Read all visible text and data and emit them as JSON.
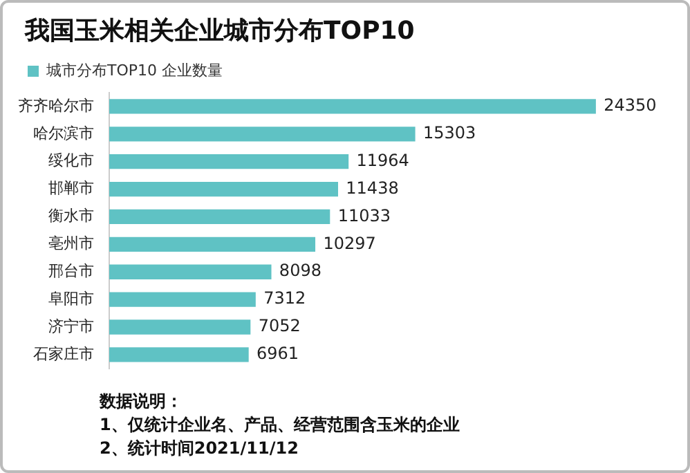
{
  "chart_data": {
    "type": "bar",
    "title": "我国玉米相关企业城市分布TOP10",
    "orientation": "horizontal",
    "categories": [
      "齐齐哈尔市",
      "哈尔滨市",
      "绥化市",
      "邯郸市",
      "衡水市",
      "亳州市",
      "邢台市",
      "阜阳市",
      "济宁市",
      "石家庄市"
    ],
    "series": [
      {
        "name": "城市分布TOP10 企业数量",
        "color": "#5fc2c4",
        "values": [
          24350,
          15303,
          11964,
          11438,
          11033,
          10297,
          8098,
          7312,
          7052,
          6961
        ]
      }
    ],
    "data_labels": true,
    "legend": "top left",
    "grid": false,
    "annotations": [
      "数据说明：",
      "1、仅统计企业名、产品、经营范围含玉米的企业",
      "2、统计时间2021/11/12"
    ]
  }
}
